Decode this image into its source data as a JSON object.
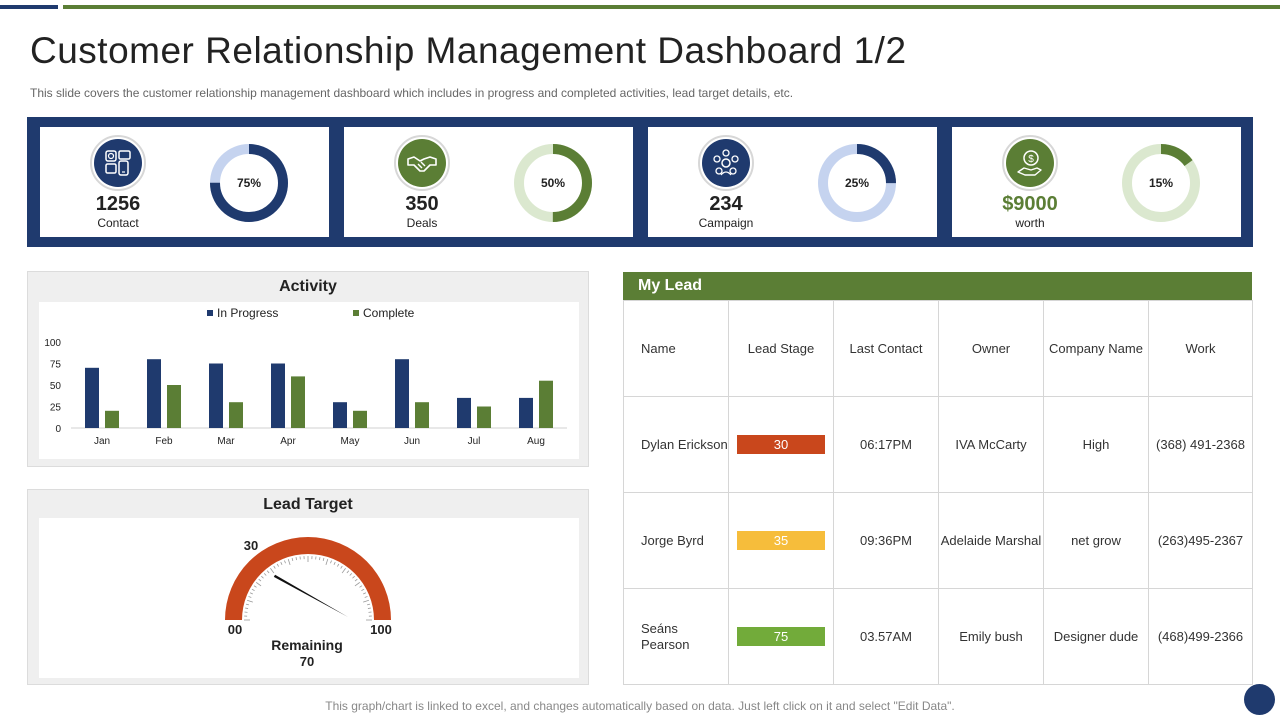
{
  "page": {
    "title": "Customer Relationship Management Dashboard 1/2",
    "subtitle": "This slide covers the customer relationship management dashboard which includes in progress and completed activities, lead target details, etc.",
    "footer_note": "This graph/chart is linked to excel, and changes automatically based on data. Just left click on it and select \"Edit Data\"."
  },
  "colors": {
    "navy": "#1f3a6e",
    "green": "#5b7e35",
    "light_navy": "#c5d3ef",
    "light_green": "#dbe8cf",
    "gauge_orange": "#c9471c",
    "stage_red": "#c9471c",
    "stage_yellow": "#f6bd3b",
    "stage_green": "#72ab3a"
  },
  "kpis": [
    {
      "value": "1256",
      "label": "Contact",
      "percent_text": "75%",
      "percent": 75,
      "icon": "contact-devices-icon",
      "theme": "navy"
    },
    {
      "value": "350",
      "label": "Deals",
      "percent_text": "50%",
      "percent": 50,
      "icon": "handshake-icon",
      "theme": "green"
    },
    {
      "value": "234",
      "label": "Campaign",
      "percent_text": "25%",
      "percent": 25,
      "icon": "campaign-network-icon",
      "theme": "navy"
    },
    {
      "value": "$9000",
      "label": "worth",
      "percent_text": "15%",
      "percent": 15,
      "icon": "money-hand-icon",
      "theme": "green"
    }
  ],
  "activity": {
    "title": "Activity",
    "legend": [
      "In Progress",
      "Complete"
    ]
  },
  "chart_data": {
    "type": "bar",
    "categories": [
      "Jan",
      "Feb",
      "Mar",
      "Apr",
      "May",
      "Jun",
      "Jul",
      "Aug"
    ],
    "series": [
      {
        "name": "In Progress",
        "values": [
          70,
          80,
          75,
          75,
          30,
          80,
          35,
          35
        ]
      },
      {
        "name": "Complete",
        "values": [
          20,
          50,
          30,
          60,
          20,
          30,
          25,
          55
        ]
      }
    ],
    "yticks": [
      "0",
      "25",
      "50",
      "75",
      "100"
    ],
    "ylim": [
      0,
      100
    ],
    "grid": false,
    "legend_position": "top"
  },
  "lead_target": {
    "title": "Lead Target",
    "min_label": "00",
    "max_label": "100",
    "value_label": "30",
    "value": 30,
    "remaining_label": "Remaining",
    "remaining_value": "70"
  },
  "my_lead": {
    "title": "My Lead",
    "headers": [
      "Name",
      "Lead Stage",
      "Last Contact",
      "Owner",
      "Company Name",
      "Work"
    ],
    "rows": [
      {
        "name": "Dylan Erickson",
        "stage": "30",
        "stage_color": "stage_red",
        "last_contact": "06:17PM",
        "owner": "IVA McCarty",
        "company": "High",
        "work": "(368) 491-2368"
      },
      {
        "name": "Jorge  Byrd",
        "stage": "35",
        "stage_color": "stage_yellow",
        "last_contact": "09:36PM",
        "owner": "Adelaide Marshal",
        "company": "net grow",
        "work": "(263)495-2367"
      },
      {
        "name": "Seáns Pearson",
        "stage": "75",
        "stage_color": "stage_green",
        "last_contact": "03.57AM",
        "owner": "Emily bush",
        "company": "Designer dude",
        "work": "(468)499-2366"
      }
    ]
  }
}
